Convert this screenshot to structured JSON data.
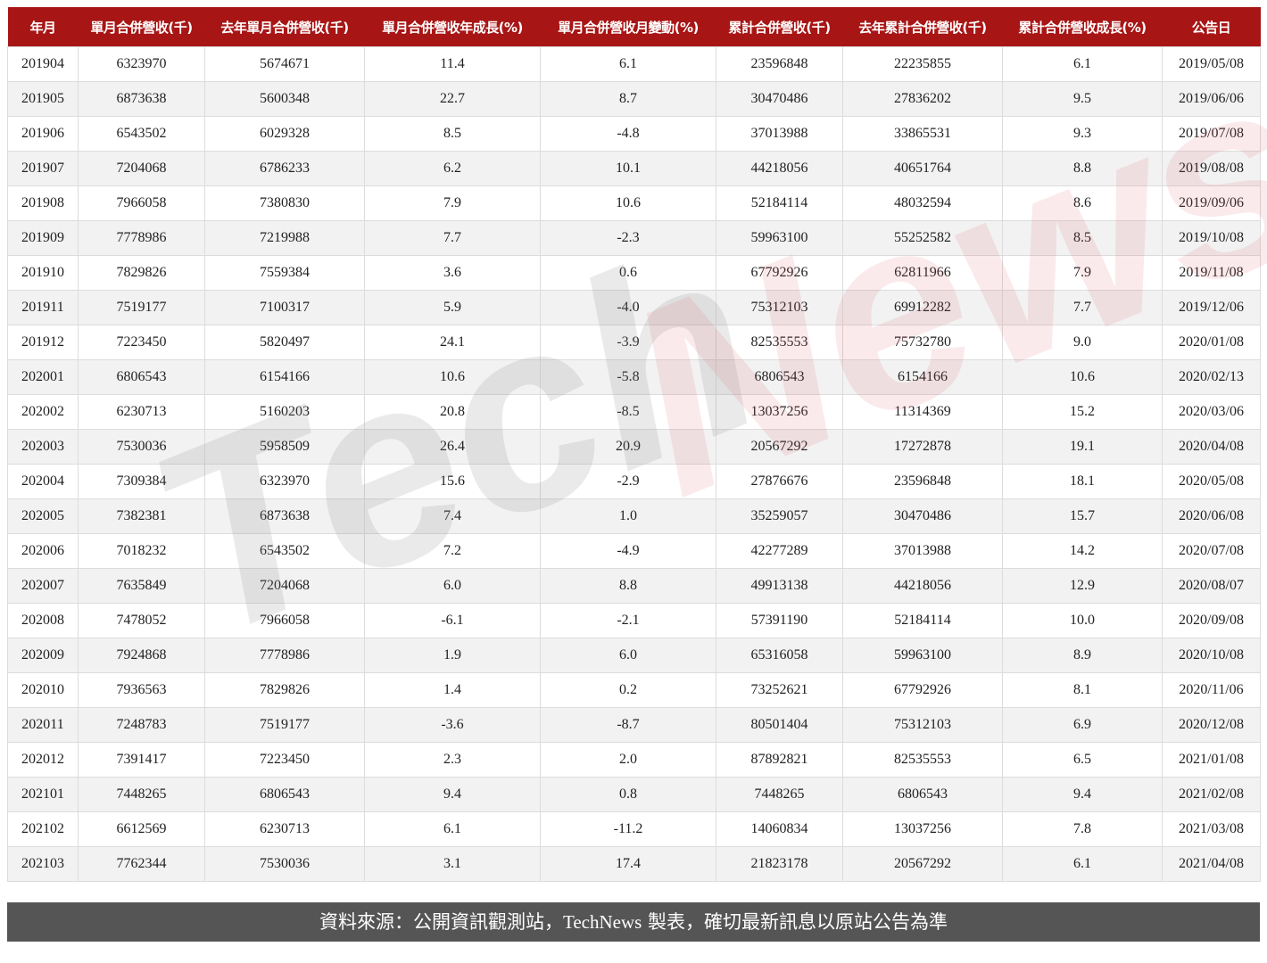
{
  "headers": [
    "年月",
    "單月合併營收(千)",
    "去年單月合併營收(千)",
    "單月合併營收年成長(%)",
    "單月合併營收月變動(%)",
    "累計合併營收(千)",
    "去年累計合併營收(千)",
    "累計合併營收成長(%)",
    "公告日"
  ],
  "rows": [
    [
      "201904",
      "6323970",
      "5674671",
      "11.4",
      "6.1",
      "23596848",
      "22235855",
      "6.1",
      "2019/05/08"
    ],
    [
      "201905",
      "6873638",
      "5600348",
      "22.7",
      "8.7",
      "30470486",
      "27836202",
      "9.5",
      "2019/06/06"
    ],
    [
      "201906",
      "6543502",
      "6029328",
      "8.5",
      "-4.8",
      "37013988",
      "33865531",
      "9.3",
      "2019/07/08"
    ],
    [
      "201907",
      "7204068",
      "6786233",
      "6.2",
      "10.1",
      "44218056",
      "40651764",
      "8.8",
      "2019/08/08"
    ],
    [
      "201908",
      "7966058",
      "7380830",
      "7.9",
      "10.6",
      "52184114",
      "48032594",
      "8.6",
      "2019/09/06"
    ],
    [
      "201909",
      "7778986",
      "7219988",
      "7.7",
      "-2.3",
      "59963100",
      "55252582",
      "8.5",
      "2019/10/08"
    ],
    [
      "201910",
      "7829826",
      "7559384",
      "3.6",
      "0.6",
      "67792926",
      "62811966",
      "7.9",
      "2019/11/08"
    ],
    [
      "201911",
      "7519177",
      "7100317",
      "5.9",
      "-4.0",
      "75312103",
      "69912282",
      "7.7",
      "2019/12/06"
    ],
    [
      "201912",
      "7223450",
      "5820497",
      "24.1",
      "-3.9",
      "82535553",
      "75732780",
      "9.0",
      "2020/01/08"
    ],
    [
      "202001",
      "6806543",
      "6154166",
      "10.6",
      "-5.8",
      "6806543",
      "6154166",
      "10.6",
      "2020/02/13"
    ],
    [
      "202002",
      "6230713",
      "5160203",
      "20.8",
      "-8.5",
      "13037256",
      "11314369",
      "15.2",
      "2020/03/06"
    ],
    [
      "202003",
      "7530036",
      "5958509",
      "26.4",
      "20.9",
      "20567292",
      "17272878",
      "19.1",
      "2020/04/08"
    ],
    [
      "202004",
      "7309384",
      "6323970",
      "15.6",
      "-2.9",
      "27876676",
      "23596848",
      "18.1",
      "2020/05/08"
    ],
    [
      "202005",
      "7382381",
      "6873638",
      "7.4",
      "1.0",
      "35259057",
      "30470486",
      "15.7",
      "2020/06/08"
    ],
    [
      "202006",
      "7018232",
      "6543502",
      "7.2",
      "-4.9",
      "42277289",
      "37013988",
      "14.2",
      "2020/07/08"
    ],
    [
      "202007",
      "7635849",
      "7204068",
      "6.0",
      "8.8",
      "49913138",
      "44218056",
      "12.9",
      "2020/08/07"
    ],
    [
      "202008",
      "7478052",
      "7966058",
      "-6.1",
      "-2.1",
      "57391190",
      "52184114",
      "10.0",
      "2020/09/08"
    ],
    [
      "202009",
      "7924868",
      "7778986",
      "1.9",
      "6.0",
      "65316058",
      "59963100",
      "8.9",
      "2020/10/08"
    ],
    [
      "202010",
      "7936563",
      "7829826",
      "1.4",
      "0.2",
      "73252621",
      "67792926",
      "8.1",
      "2020/11/06"
    ],
    [
      "202011",
      "7248783",
      "7519177",
      "-3.6",
      "-8.7",
      "80501404",
      "75312103",
      "6.9",
      "2020/12/08"
    ],
    [
      "202012",
      "7391417",
      "7223450",
      "2.3",
      "2.0",
      "87892821",
      "82535553",
      "6.5",
      "2021/01/08"
    ],
    [
      "202101",
      "7448265",
      "6806543",
      "9.4",
      "0.8",
      "7448265",
      "6806543",
      "9.4",
      "2021/02/08"
    ],
    [
      "202102",
      "6612569",
      "6230713",
      "6.1",
      "-11.2",
      "14060834",
      "13037256",
      "7.8",
      "2021/03/08"
    ],
    [
      "202103",
      "7762344",
      "7530036",
      "3.1",
      "17.4",
      "21823178",
      "20567292",
      "6.1",
      "2021/04/08"
    ]
  ],
  "footer": {
    "prefix": "資料來源：公開資訊觀測站，",
    "brand": "TechNews",
    "suffix": " 製表，確切最新訊息以原站公告為準"
  },
  "watermark": {
    "part1": "Tech",
    "part2": "News"
  },
  "colors": {
    "header_bg": "#a81515",
    "footer_bg": "#555555"
  }
}
